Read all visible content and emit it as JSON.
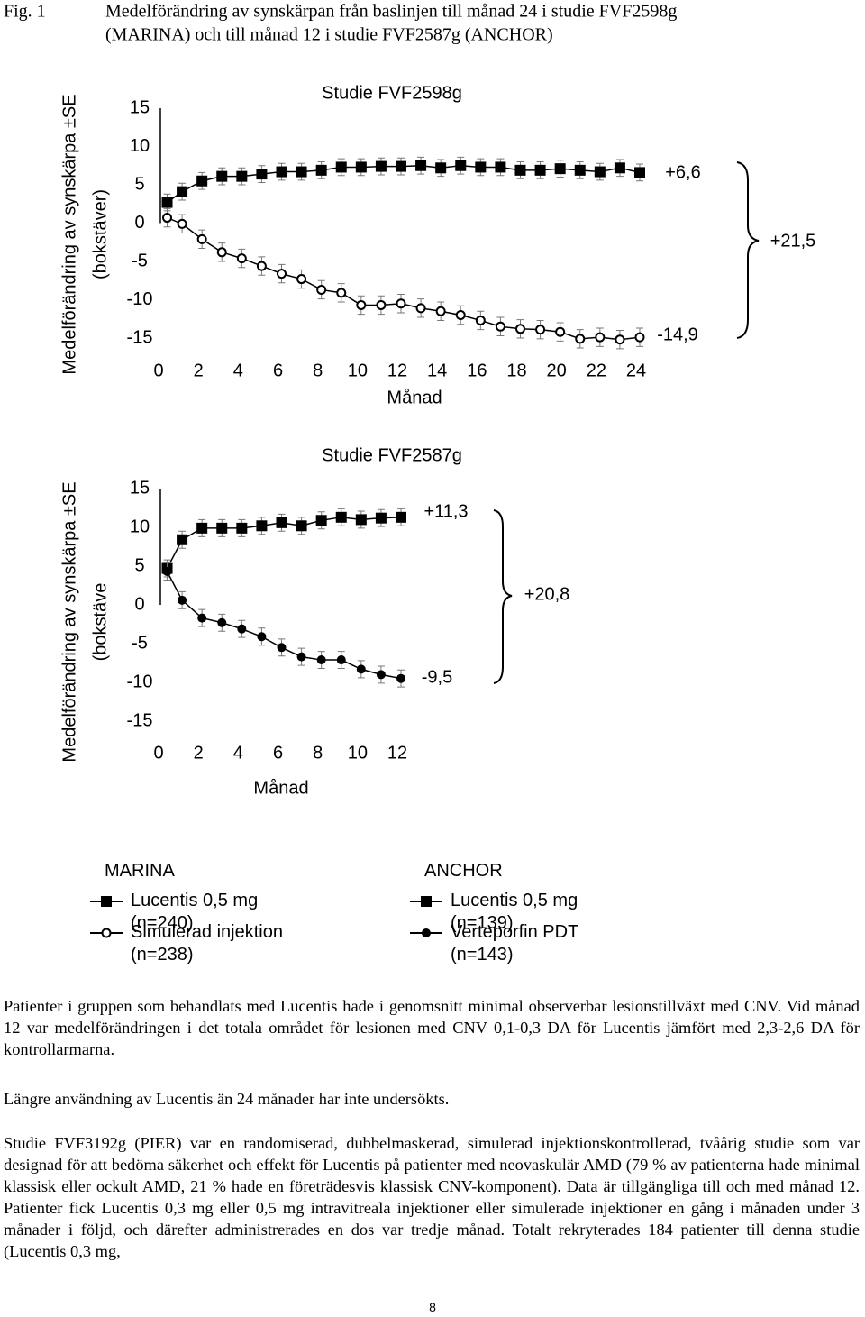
{
  "figure": {
    "label": "Fig. 1",
    "title_lines": [
      "Medelförändring av synskärpan från baslinjen till månad 24 i studie FVF2598g",
      "(MARINA) och till månad 12 i studie FVF2587g (ANCHOR)"
    ]
  },
  "chart_data": [
    {
      "type": "line",
      "title": "Studie FVF2598g",
      "x_label": "Månad",
      "y_label": "Medelförändring av synskärpa ±SE",
      "y_label_2": "(bokstäver)",
      "xlim": [
        0,
        24
      ],
      "xticks": [
        0,
        2,
        4,
        6,
        8,
        10,
        12,
        14,
        16,
        18,
        20,
        22,
        24
      ],
      "ylim": [
        -15,
        15
      ],
      "yticks": [
        15,
        10,
        5,
        0,
        -5,
        -10,
        -15
      ],
      "x": [
        0.25,
        1,
        2,
        3,
        4,
        5,
        6,
        7,
        8,
        9,
        10,
        11,
        12,
        13,
        14,
        15,
        16,
        17,
        18,
        19,
        20,
        21,
        22,
        23,
        24
      ],
      "legend_title": "MARINA",
      "series": [
        {
          "name": "Lucentis 0,5 mg (n=240)",
          "color": "#000000",
          "marker": "square",
          "values": [
            2.7,
            4.1,
            5.5,
            6.1,
            6.1,
            6.4,
            6.7,
            6.7,
            6.9,
            7.3,
            7.3,
            7.4,
            7.4,
            7.5,
            7.2,
            7.5,
            7.3,
            7.3,
            6.9,
            6.9,
            7.1,
            6.9,
            6.7,
            7.2,
            6.6
          ],
          "errors": [
            1.1,
            1.1,
            1.1,
            1.1,
            1.1,
            1.1,
            1.1,
            1.1,
            1.1,
            1.1,
            1.1,
            1.1,
            1.1,
            1.1,
            1.1,
            1.1,
            1.1,
            1.1,
            1.1,
            1.1,
            1.1,
            1.1,
            1.1,
            1.1,
            1.1
          ]
        },
        {
          "name": "Simulerad injektion (n=238)",
          "color": "#000000",
          "marker": "circle-open",
          "values": [
            0.7,
            -0.1,
            -2.1,
            -3.8,
            -4.6,
            -5.6,
            -6.6,
            -7.3,
            -8.7,
            -9.1,
            -10.7,
            -10.7,
            -10.5,
            -11.1,
            -11.5,
            -12.0,
            -12.7,
            -13.5,
            -13.8,
            -13.9,
            -14.2,
            -15.1,
            -14.9,
            -15.2,
            -14.9
          ],
          "errors": [
            1.2,
            1.2,
            1.2,
            1.2,
            1.2,
            1.2,
            1.2,
            1.2,
            1.2,
            1.2,
            1.2,
            1.2,
            1.2,
            1.2,
            1.2,
            1.2,
            1.2,
            1.2,
            1.2,
            1.2,
            1.2,
            1.2,
            1.2,
            1.2,
            1.2
          ]
        }
      ],
      "annotations": [
        "+6,6",
        "-14,9",
        "+21,5"
      ]
    },
    {
      "type": "line",
      "title": "Studie FVF2587g",
      "x_label": "Månad",
      "y_label": "Medelförändring av synskärpa ±SE",
      "y_label_2": "(bokstäve",
      "xlim": [
        0,
        12
      ],
      "xticks": [
        0,
        2,
        4,
        6,
        8,
        10,
        12
      ],
      "ylim": [
        -15,
        15
      ],
      "yticks": [
        15,
        10,
        5,
        0,
        -5,
        -10,
        -15
      ],
      "x": [
        0.25,
        1,
        2,
        3,
        4,
        5,
        6,
        7,
        8,
        9,
        10,
        11,
        12
      ],
      "legend_title": "ANCHOR",
      "series": [
        {
          "name": "Lucentis 0,5 mg (n=139)",
          "color": "#000000",
          "marker": "square",
          "values": [
            4.7,
            8.4,
            9.9,
            9.9,
            9.9,
            10.2,
            10.6,
            10.2,
            10.9,
            11.3,
            11.0,
            11.2,
            11.3
          ],
          "errors": [
            1.1,
            1.1,
            1.1,
            1.1,
            1.1,
            1.1,
            1.1,
            1.1,
            1.1,
            1.1,
            1.1,
            1.1,
            1.1
          ]
        },
        {
          "name": "Verteporfin PDT (n=143)",
          "color": "#000000",
          "marker": "circle",
          "values": [
            4.3,
            0.6,
            -1.7,
            -2.3,
            -3.1,
            -4.1,
            -5.5,
            -6.7,
            -7.1,
            -7.1,
            -8.3,
            -9.0,
            -9.5
          ],
          "errors": [
            1.1,
            1.1,
            1.1,
            1.1,
            1.1,
            1.1,
            1.1,
            1.1,
            1.1,
            1.1,
            1.1,
            1.1,
            1.1
          ]
        }
      ],
      "annotations": [
        "+11,3",
        "-9,5",
        "+20,8"
      ]
    }
  ],
  "paragraphs": [
    "Patienter i gruppen som behandlats med Lucentis hade i genomsnitt minimal observerbar lesionstillväxt med CNV. Vid månad 12 var medelförändringen i det totala området för lesionen med CNV 0,1-0,3 DA för Lucentis jämfört med 2,3-2,6 DA för kontrollarmarna.",
    "Längre användning av Lucentis än 24 månader har inte undersökts.",
    "Studie FVF3192g (PIER) var en randomiserad, dubbelmaskerad, simulerad injektionskontrollerad, tvåårig studie som var designad för att bedöma säkerhet och effekt för Lucentis på patienter med neovaskulär AMD (79 % av patienterna hade minimal klassisk eller ockult AMD, 21 % hade en företrädesvis klassisk CNV-komponent). Data är tillgängliga till och med månad 12. Patienter fick Lucentis 0,3 mg eller 0,5 mg intravitreala injektioner eller simulerade injektioner en gång i månaden under 3 månader i följd, och därefter administrerades en dos var tredje månad. Totalt rekryterades 184 patienter till denna studie (Lucentis 0,3 mg,"
  ],
  "page_number": "8"
}
